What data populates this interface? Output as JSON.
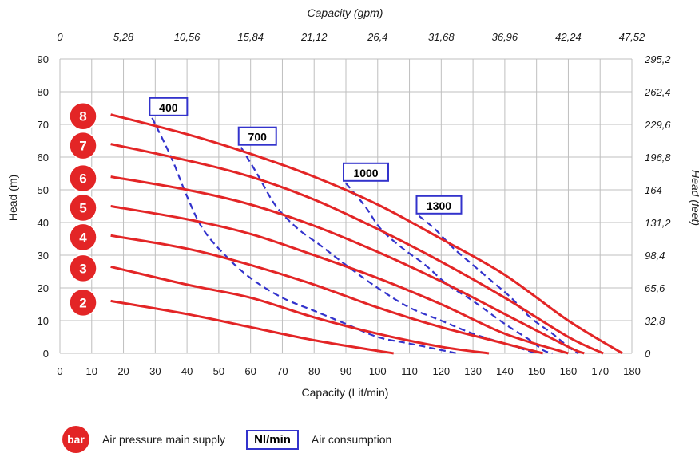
{
  "chart_data": {
    "type": "line",
    "title": "",
    "xlabel": "Capacity (Lit/min)",
    "ylabel": "Head (m)",
    "x2label": "Capacity (gpm)",
    "y2label": "Head (feet)",
    "xlim": [
      0,
      180
    ],
    "ylim": [
      0,
      90
    ],
    "x_ticks": [
      "0",
      "10",
      "20",
      "30",
      "40",
      "50",
      "60",
      "70",
      "80",
      "90",
      "100",
      "110",
      "120",
      "130",
      "140",
      "150",
      "160",
      "170",
      "180"
    ],
    "y_ticks": [
      "0",
      "10",
      "20",
      "30",
      "40",
      "50",
      "60",
      "70",
      "80",
      "90"
    ],
    "x2_ticks": [
      "0",
      "5,28",
      "10,56",
      "15,84",
      "21,12",
      "26,4",
      "31,68",
      "36,96",
      "42,24",
      "47,52"
    ],
    "y2_ticks": [
      "0",
      "32,8",
      "65,6",
      "98,4",
      "131,2",
      "164",
      "196,8",
      "229,6",
      "262,4",
      "295,2"
    ],
    "grid": true,
    "colors": {
      "pressure_curve": "#e32526",
      "air_curve": "#3333cc",
      "grid": "#bfbfbf"
    },
    "pressure_series": [
      {
        "name": "2",
        "points": [
          [
            16,
            16
          ],
          [
            40,
            12
          ],
          [
            60,
            8
          ],
          [
            80,
            4
          ],
          [
            105,
            0
          ]
        ]
      },
      {
        "name": "3",
        "points": [
          [
            16,
            26.5
          ],
          [
            40,
            21
          ],
          [
            60,
            17
          ],
          [
            80,
            11
          ],
          [
            100,
            6
          ],
          [
            120,
            2
          ],
          [
            135,
            0
          ]
        ]
      },
      {
        "name": "4",
        "points": [
          [
            16,
            36
          ],
          [
            40,
            32
          ],
          [
            60,
            27
          ],
          [
            80,
            21
          ],
          [
            100,
            14
          ],
          [
            120,
            8
          ],
          [
            140,
            3
          ],
          [
            152,
            0
          ]
        ]
      },
      {
        "name": "5",
        "points": [
          [
            16,
            45
          ],
          [
            40,
            41
          ],
          [
            60,
            36.5
          ],
          [
            80,
            30
          ],
          [
            100,
            23
          ],
          [
            120,
            15
          ],
          [
            140,
            6
          ],
          [
            160,
            0
          ]
        ]
      },
      {
        "name": "6",
        "points": [
          [
            16,
            54
          ],
          [
            40,
            50
          ],
          [
            60,
            45.5
          ],
          [
            80,
            39
          ],
          [
            100,
            31
          ],
          [
            120,
            22
          ],
          [
            140,
            12
          ],
          [
            160,
            2
          ],
          [
            165,
            0
          ]
        ]
      },
      {
        "name": "7",
        "points": [
          [
            16,
            64
          ],
          [
            40,
            59
          ],
          [
            60,
            54
          ],
          [
            80,
            47
          ],
          [
            100,
            38
          ],
          [
            120,
            28
          ],
          [
            140,
            17
          ],
          [
            160,
            5
          ],
          [
            171,
            0
          ]
        ]
      },
      {
        "name": "8",
        "points": [
          [
            16,
            73
          ],
          [
            40,
            67
          ],
          [
            60,
            61
          ],
          [
            80,
            54
          ],
          [
            100,
            45.5
          ],
          [
            120,
            35
          ],
          [
            140,
            24
          ],
          [
            160,
            10
          ],
          [
            177,
            0
          ]
        ]
      }
    ],
    "air_series": [
      {
        "label": "400",
        "points": [
          [
            29,
            72
          ],
          [
            35,
            60
          ],
          [
            40,
            48
          ],
          [
            45,
            38
          ],
          [
            52,
            30
          ],
          [
            60,
            23
          ],
          [
            70,
            17
          ],
          [
            80,
            13
          ],
          [
            90,
            9
          ],
          [
            100,
            5
          ],
          [
            110,
            3
          ],
          [
            120,
            1
          ],
          [
            125,
            0
          ]
        ]
      },
      {
        "label": "700",
        "points": [
          [
            57,
            63
          ],
          [
            62,
            55
          ],
          [
            68,
            45
          ],
          [
            75,
            38
          ],
          [
            82,
            33
          ],
          [
            90,
            27
          ],
          [
            100,
            20
          ],
          [
            110,
            14
          ],
          [
            120,
            10
          ],
          [
            130,
            6
          ],
          [
            140,
            3
          ],
          [
            150,
            0
          ]
        ]
      },
      {
        "label": "1000",
        "points": [
          [
            90,
            52
          ],
          [
            96,
            45
          ],
          [
            101,
            38
          ],
          [
            108,
            32
          ],
          [
            115,
            27
          ],
          [
            122,
            21
          ],
          [
            130,
            16
          ],
          [
            140,
            9
          ],
          [
            148,
            4
          ],
          [
            152,
            1
          ],
          [
            155,
            0
          ]
        ]
      },
      {
        "label": "1300",
        "points": [
          [
            113,
            42
          ],
          [
            118,
            38
          ],
          [
            124,
            32
          ],
          [
            130,
            27
          ],
          [
            136,
            22
          ],
          [
            142,
            17
          ],
          [
            148,
            11
          ],
          [
            155,
            6
          ],
          [
            160,
            2
          ],
          [
            163,
            0
          ]
        ]
      }
    ],
    "legend": {
      "badge_text": "bar",
      "pressure_text": "Air pressure main supply",
      "air_box_text": "Nl/min",
      "air_text": "Air consumption"
    }
  }
}
